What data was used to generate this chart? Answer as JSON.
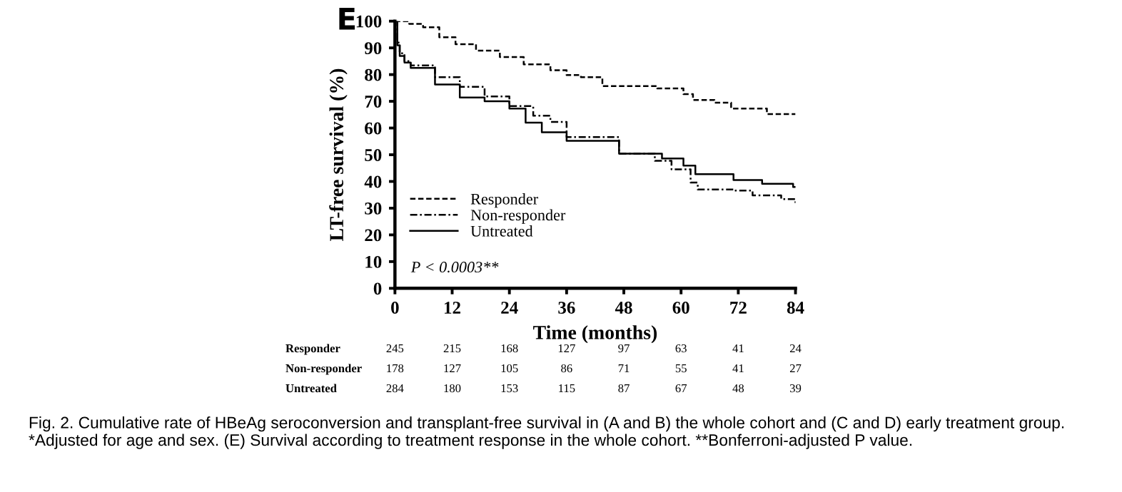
{
  "chart_data": {
    "type": "step",
    "title": "E",
    "xlabel": "Time (months)",
    "ylabel": "LT-free survival (%)",
    "xlim": [
      0,
      84
    ],
    "xticks": [
      0,
      12,
      24,
      36,
      48,
      60,
      72,
      84
    ],
    "ylim": [
      0,
      100
    ],
    "yticks": [
      0,
      10,
      20,
      30,
      40,
      50,
      60,
      70,
      80,
      90,
      100
    ],
    "grid": false,
    "legend": "bottom left",
    "marker": "none",
    "series": [
      {
        "name": "Responder",
        "color": "#000000",
        "line_style": "dashed",
        "x": [
          0,
          3,
          5.9,
          9.3,
          12.7,
          17,
          22,
          27,
          32.6,
          36,
          39,
          43.5,
          55,
          60.5,
          62.5,
          67,
          70.5,
          78,
          84
        ],
        "values": [
          100,
          99,
          97.7,
          94,
          91.4,
          89,
          86.6,
          83.8,
          81.6,
          79.8,
          79,
          75.7,
          74.8,
          72.7,
          70.5,
          69.5,
          67.3,
          65.2,
          65.2
        ]
      },
      {
        "name": "Non-responder",
        "color": "#000000",
        "line_style": "dashdot",
        "x": [
          0,
          0.5,
          1,
          2,
          3.3,
          8.4,
          13.6,
          18.8,
          24,
          29,
          32.6,
          36,
          47,
          54.5,
          58,
          62,
          63.5,
          71,
          75,
          81,
          84
        ],
        "values": [
          100,
          92,
          88,
          85,
          83.4,
          79,
          75.4,
          71.8,
          68.2,
          64.6,
          62.3,
          56.6,
          50.4,
          47.7,
          44.5,
          39.6,
          37,
          36.6,
          34.8,
          33.4,
          31.3
        ]
      },
      {
        "name": "Untreated",
        "color": "#000000",
        "line_style": "solid",
        "x": [
          0,
          0.5,
          1,
          2,
          3.3,
          8.4,
          13.6,
          18.8,
          24,
          27.4,
          30.8,
          36,
          47,
          56,
          60.5,
          63,
          71,
          77,
          83.5,
          84
        ],
        "values": [
          100,
          91,
          87,
          84.5,
          82.5,
          76.3,
          71.4,
          70,
          67.3,
          62,
          58.4,
          55.2,
          50.4,
          48.6,
          45.9,
          42.7,
          40.5,
          39.1,
          37.9,
          37.9
        ]
      }
    ],
    "annotations": [
      "P < 0.0003**",
      "Responder",
      "245",
      "215",
      "168",
      "127",
      "97",
      "63",
      "41",
      "24",
      "Non-responder",
      "178",
      "127",
      "105",
      "86",
      "71",
      "55",
      "41",
      "27",
      "Untreated",
      "284",
      "180",
      "153",
      "115",
      "87",
      "67",
      "48",
      "39",
      "Fig. 2. Cumulative rate of HBeAg seroconversion and transplant-free survival in (A and B) the whole cohort and (C and D) early treatment group. *Adjusted for age and sex. (E) Survival according to treatment response in the whole cohort. **Bonferroni-adjusted P value."
    ]
  }
}
